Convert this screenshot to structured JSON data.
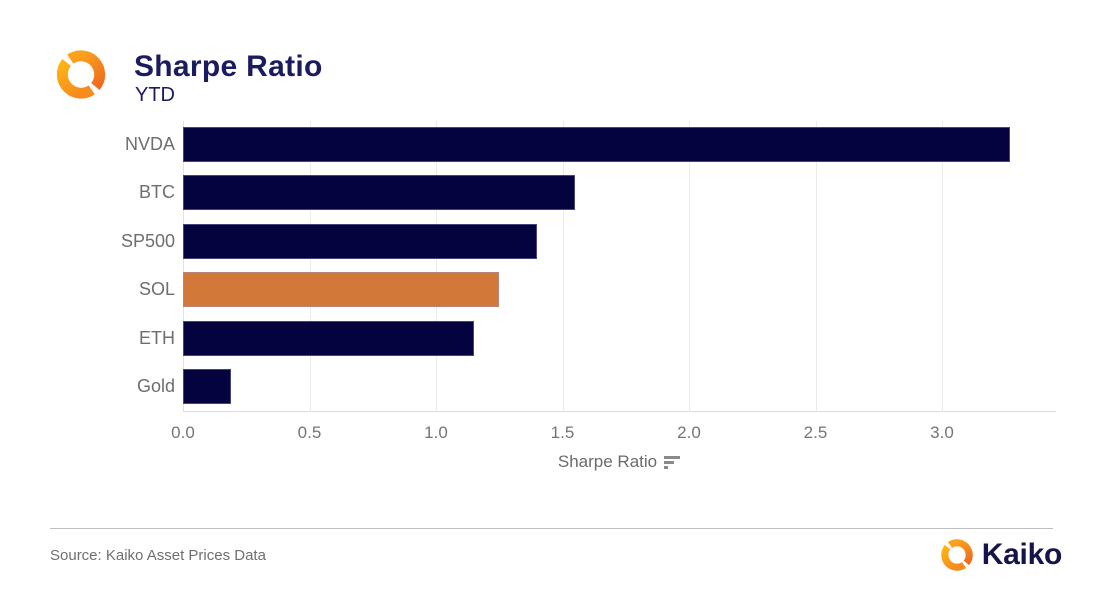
{
  "header": {
    "title": "Sharpe Ratio",
    "subtitle": "YTD"
  },
  "chart_data": {
    "type": "bar",
    "orientation": "horizontal",
    "title": "Sharpe Ratio",
    "subtitle": "YTD",
    "categories": [
      "NVDA",
      "BTC",
      "SP500",
      "SOL",
      "ETH",
      "Gold"
    ],
    "values": [
      3.27,
      1.55,
      1.4,
      1.25,
      1.15,
      0.19
    ],
    "bar_colors": [
      "#040340",
      "#040340",
      "#040340",
      "#d2793a",
      "#040340",
      "#040340"
    ],
    "highlight_category": "SOL",
    "xlabel": "Sharpe Ratio",
    "x_ticks": [
      0,
      0.5,
      1,
      1.5,
      2,
      2.5,
      3
    ],
    "x_tick_labels": [
      "0.0",
      "0.5",
      "1.0",
      "1.5",
      "2.0",
      "2.5",
      "3.0"
    ],
    "xlim": [
      0,
      3.45
    ],
    "grid": true,
    "legend": "none"
  },
  "axis": {
    "label": "Sharpe Ratio"
  },
  "footer": {
    "source": "Source: Kaiko Asset Prices Data",
    "brand": "Kaiko"
  },
  "colors": {
    "navy_bar": "#040340",
    "orange_bar": "#d2793a",
    "title_navy": "#1b1b5f",
    "brand_navy": "#15154a",
    "grid_gray": "#ebebeb",
    "axis_text_gray": "#757575",
    "logo_orange_light": "#ffb414",
    "logo_orange_dark": "#ef6a22"
  }
}
